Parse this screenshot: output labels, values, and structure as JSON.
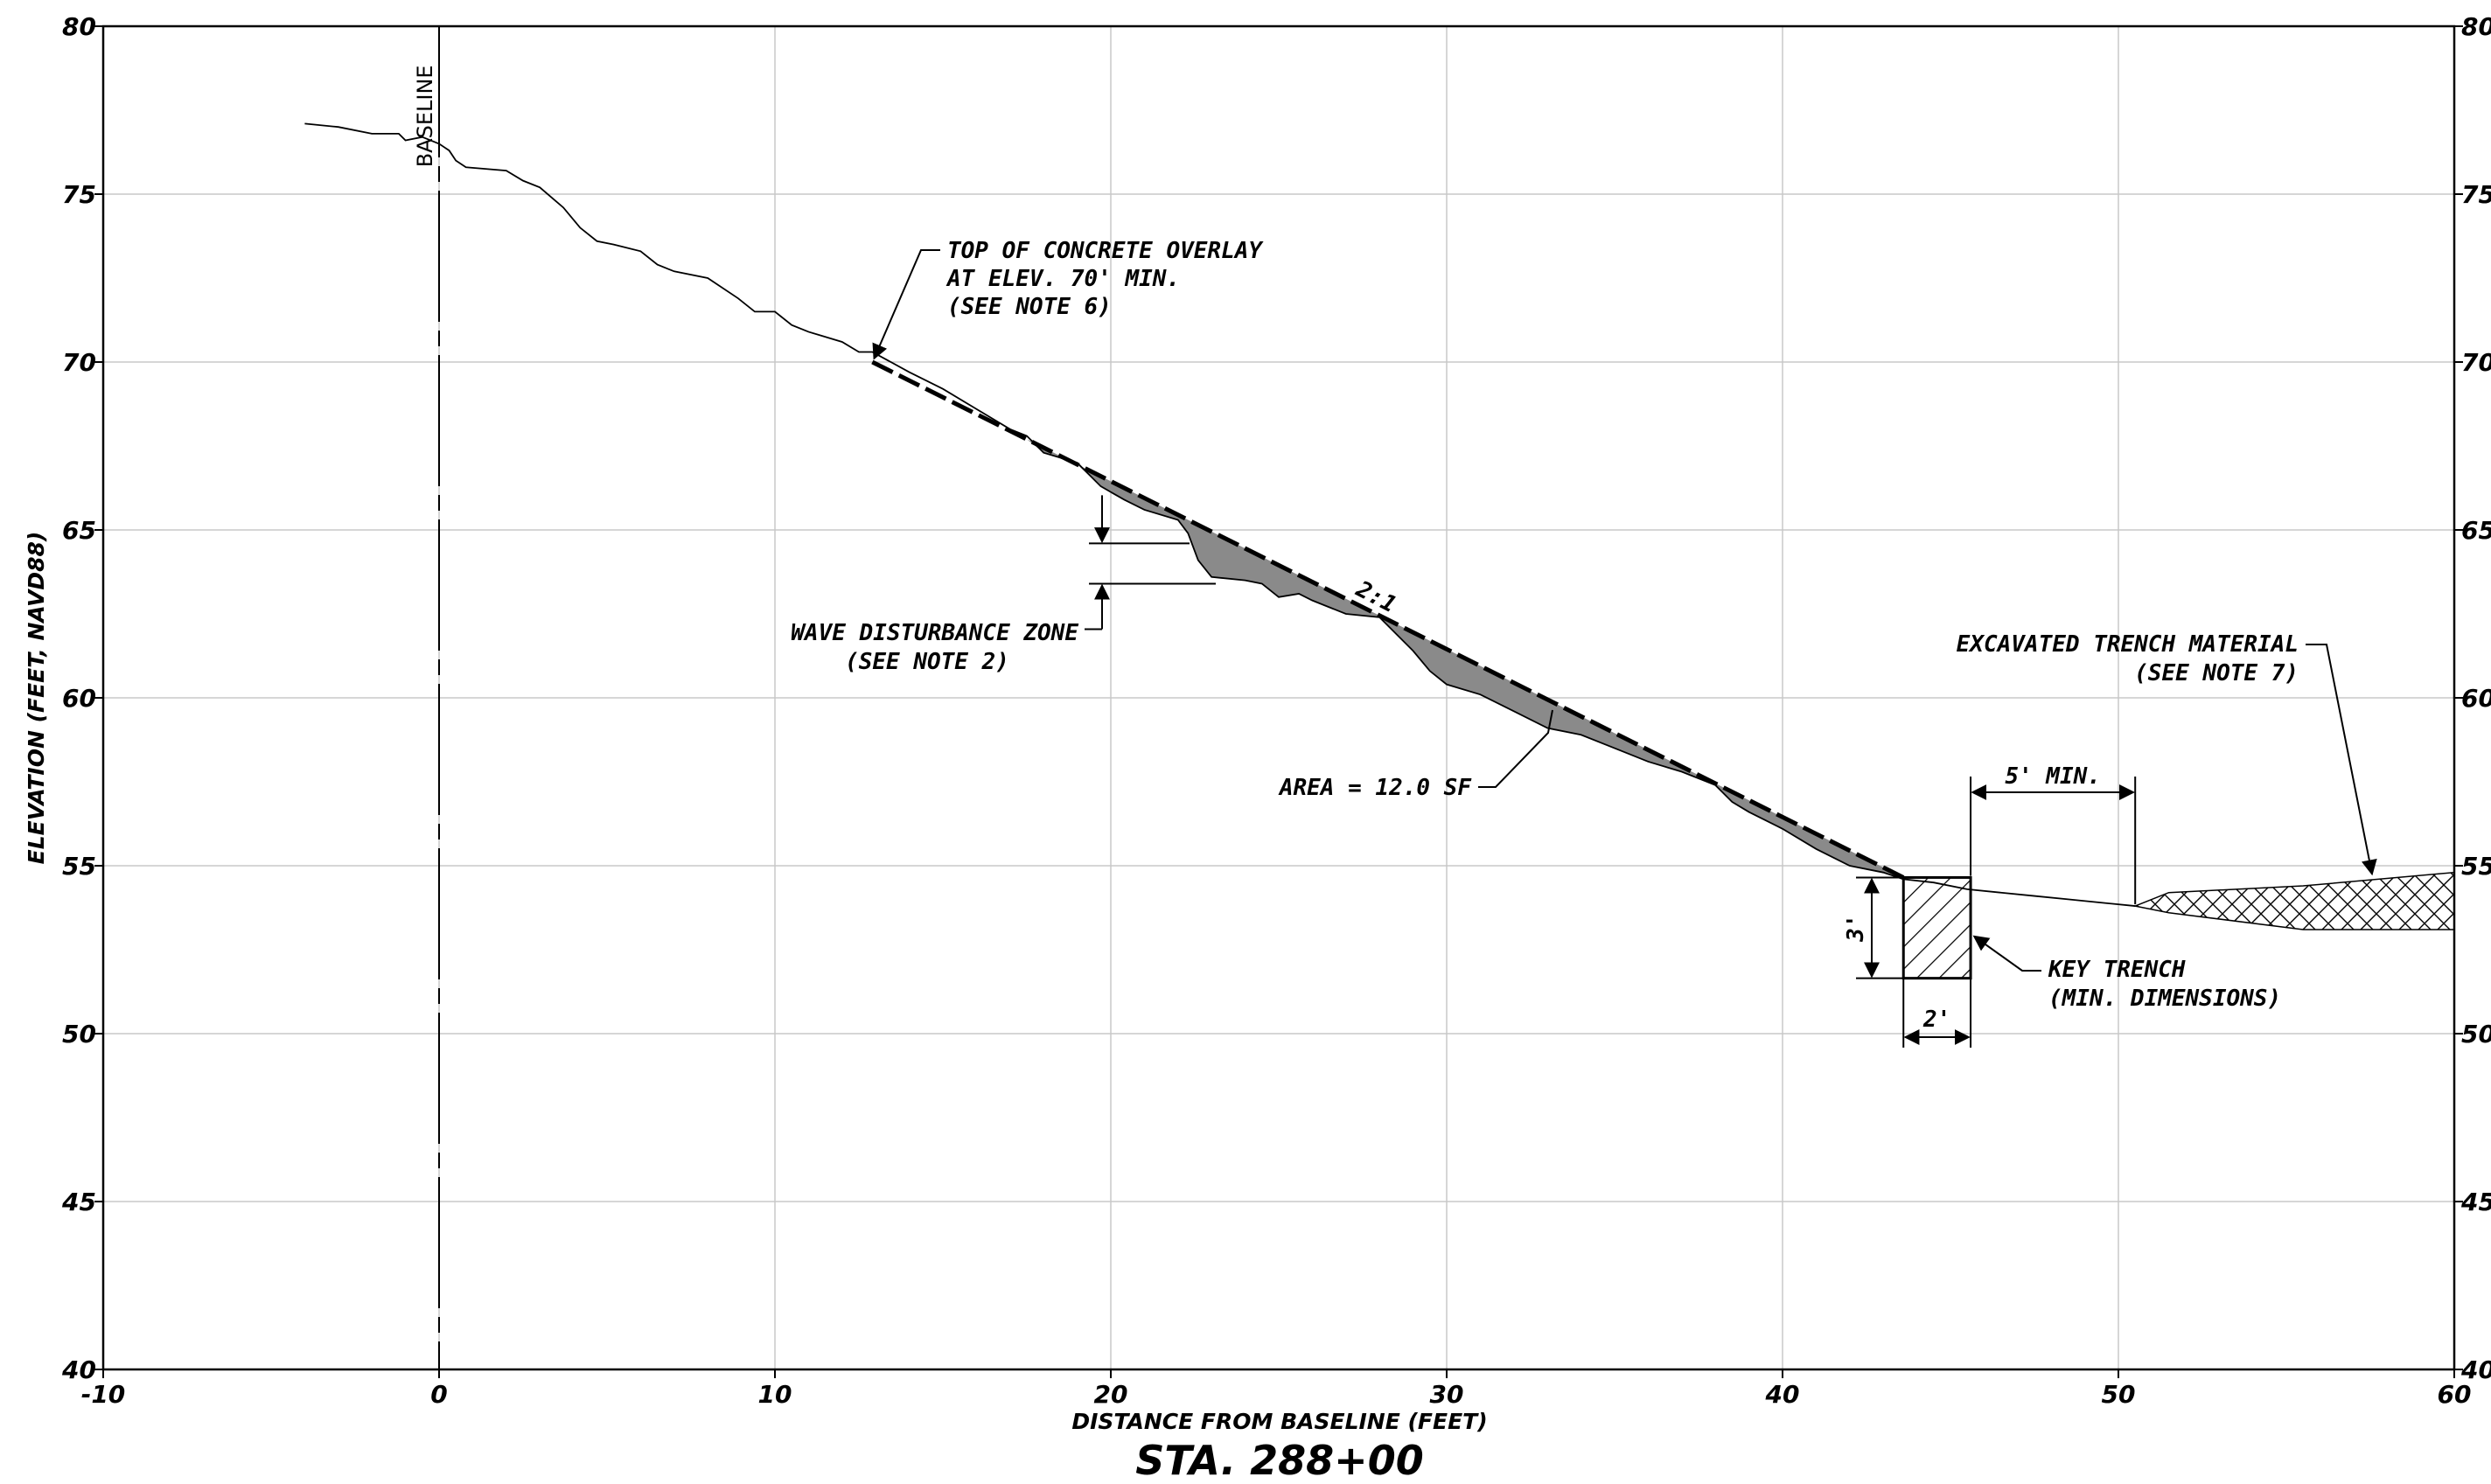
{
  "chart_data": {
    "type": "line",
    "title": "STA. 288+00",
    "xlabel": "DISTANCE FROM BASELINE (FEET)",
    "ylabel": "ELEVATION (FEET, NAVD88)",
    "xlim": [
      -10,
      60
    ],
    "ylim": [
      40,
      80
    ],
    "x_ticks": [
      "-10",
      "0",
      "10",
      "20",
      "30",
      "40",
      "50",
      "60"
    ],
    "y_ticks": [
      "40",
      "45",
      "50",
      "55",
      "60",
      "65",
      "70",
      "75",
      "80"
    ],
    "grid": true,
    "series": [
      {
        "style": "existing-ground",
        "color": "#000000",
        "x": [
          -4,
          -3,
          -2,
          -1.2,
          -1,
          -0.5,
          0,
          0.3,
          0.5,
          0.8,
          2,
          2.5,
          3,
          3.7,
          4.2,
          4.7,
          5.2,
          6,
          6.5,
          7,
          8,
          8.9,
          9.4,
          10,
          10.5,
          11,
          12,
          12.5,
          12.9,
          14,
          15,
          16,
          17,
          17.5,
          18,
          19,
          19.7,
          20.4,
          21,
          22,
          22.3,
          22.6,
          23,
          24,
          24.5,
          25,
          25.6,
          26,
          27,
          28,
          29,
          29.5,
          30,
          31,
          32,
          33,
          34,
          35,
          36,
          37,
          38,
          38.5,
          39,
          40,
          41,
          42,
          43,
          43.6,
          44.5,
          45.5,
          46.5,
          47.5,
          48.5,
          49.5,
          50.5
        ],
        "y": [
          77.1,
          77.0,
          76.8,
          76.8,
          76.6,
          76.7,
          76.5,
          76.3,
          76.0,
          75.8,
          75.7,
          75.4,
          75.2,
          74.6,
          74.0,
          73.6,
          73.5,
          73.3,
          72.9,
          72.7,
          72.5,
          71.9,
          71.5,
          71.5,
          71.1,
          70.9,
          70.6,
          70.3,
          70.3,
          69.7,
          69.2,
          68.6,
          68.0,
          67.8,
          67.3,
          67.0,
          66.3,
          65.9,
          65.6,
          65.3,
          64.9,
          64.1,
          63.6,
          63.5,
          63.4,
          63.0,
          63.1,
          62.9,
          62.5,
          62.4,
          61.4,
          60.8,
          60.4,
          60.1,
          59.6,
          59.1,
          58.9,
          58.5,
          58.1,
          57.8,
          57.4,
          56.9,
          56.6,
          56.1,
          55.5,
          55.0,
          54.8,
          54.6,
          54.5,
          54.3,
          54.2,
          54.1,
          54.0,
          53.9,
          53.8
        ]
      },
      {
        "name": "2:1",
        "style": "design-slope",
        "color": "#000000",
        "x": [
          12.9,
          43.6
        ],
        "y": [
          70.0,
          54.65
        ]
      }
    ],
    "baseline_x": 0,
    "key_trench": {
      "x": [
        43.6,
        45.6
      ],
      "y": [
        51.65,
        54.65
      ]
    },
    "excavated_material_fill": {
      "x": [
        50.5,
        51.5,
        55.5,
        60
      ],
      "top": [
        53.8,
        54.2,
        54.4,
        54.8
      ],
      "bottom": [
        53.8,
        53.6,
        53.1,
        53.1
      ]
    },
    "shaded_area": {
      "label": "AREA = 12.0 SF"
    },
    "annotations": {
      "baseline": "BASELINE",
      "concrete_overlay": [
        "TOP OF CONCRETE OVERLAY",
        "AT ELEV. 70' MIN.",
        "(SEE NOTE 6)"
      ],
      "wave_zone": [
        "WAVE DISTURBANCE ZONE",
        "(SEE NOTE 2)"
      ],
      "area": "AREA = 12.0 SF",
      "slope": "2:1",
      "excavated": [
        "EXCAVATED TRENCH MATERIAL",
        "(SEE NOTE 7)"
      ],
      "five_min": "5' MIN.",
      "three_ft": "3'",
      "two_ft": "2'",
      "key_trench": [
        "KEY TRENCH",
        "(MIN. DIMENSIONS)"
      ]
    }
  }
}
